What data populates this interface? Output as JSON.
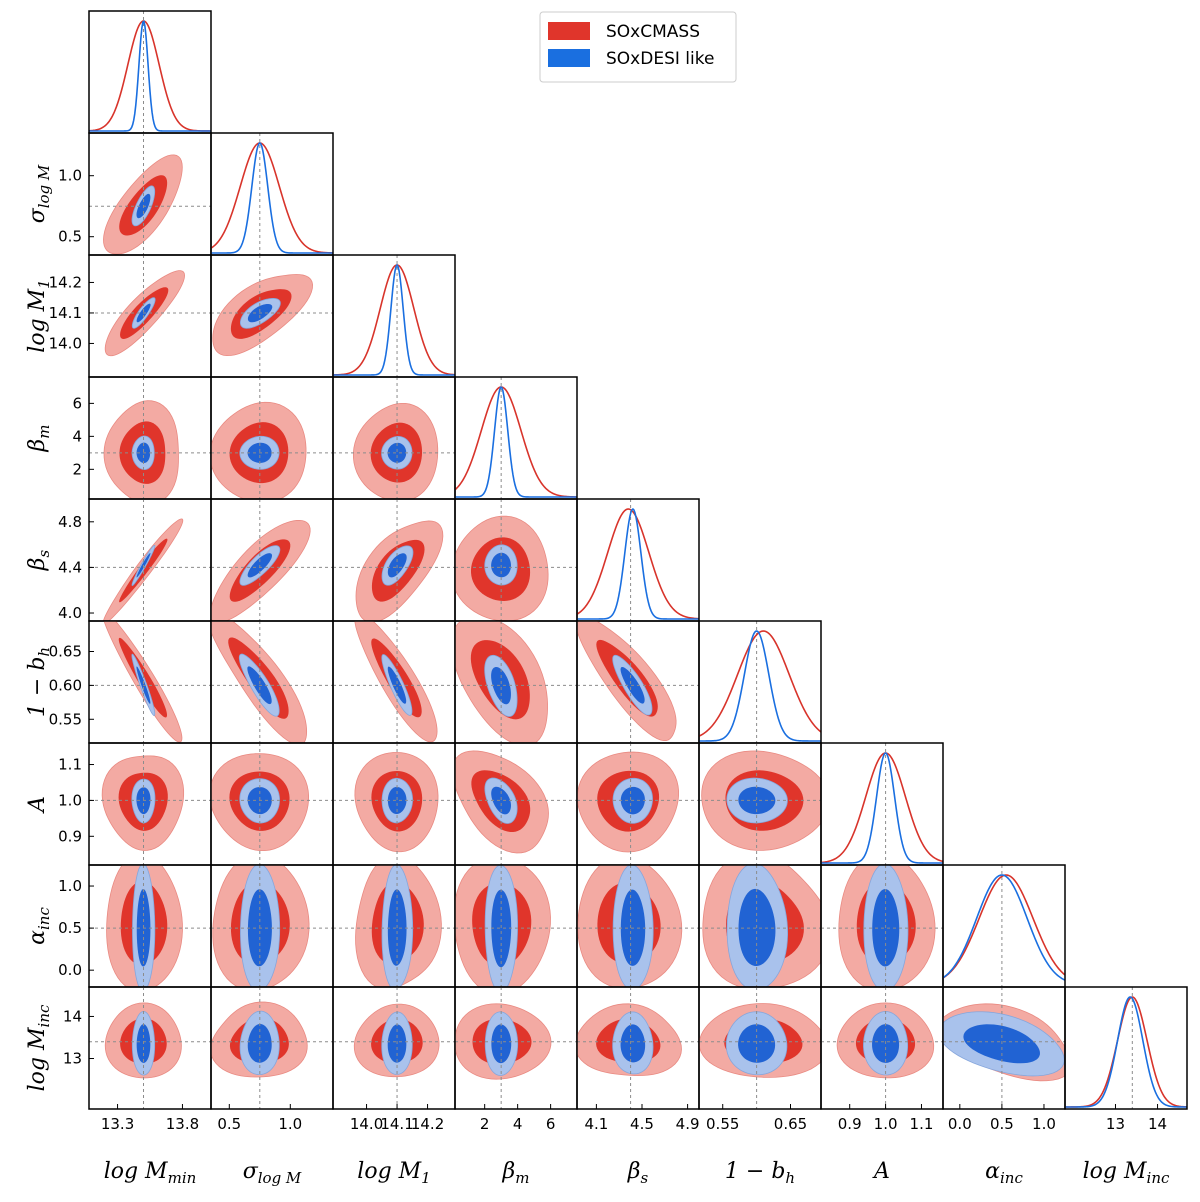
{
  "chart_data": {
    "type": "triangle",
    "title": "",
    "legend": {
      "placement": "top-right",
      "entries": [
        {
          "name": "SOxCMASS",
          "color": "#e0352b"
        },
        {
          "name": "SOxDESI like",
          "color": "#1a6fe0"
        }
      ]
    },
    "colors": {
      "cmass_outer": "#f3aaa3",
      "cmass_inner": "#e0352b",
      "desi_outer": "#a9c2ec",
      "desi_inner": "#2163d3",
      "cmass_line": "#d8342b",
      "desi_line": "#1a6fe0",
      "truth_line": "#8c8c8c"
    },
    "parameters": [
      {
        "name": "logMmin",
        "label": "log M_min",
        "fiducial": 13.5,
        "range": [
          13.08,
          14.02
        ],
        "ticks": [
          13.3,
          13.8
        ],
        "tick_labels": [
          "13.3",
          "13.8"
        ]
      },
      {
        "name": "sigma_logM",
        "label": "σ_log M",
        "fiducial": 0.75,
        "range": [
          0.35,
          1.35
        ],
        "ticks": [
          0.5,
          1.0
        ],
        "tick_labels": [
          "0.5",
          "1.0"
        ]
      },
      {
        "name": "logM1",
        "label": "log M_1",
        "fiducial": 14.1,
        "range": [
          13.89,
          14.29
        ],
        "ticks": [
          14.0,
          14.1,
          14.2
        ],
        "tick_labels": [
          "14.0",
          "14.1",
          "14.2"
        ]
      },
      {
        "name": "beta_m",
        "label": "β_m",
        "fiducial": 3.0,
        "range": [
          0.2,
          7.6
        ],
        "ticks": [
          2,
          4,
          6
        ],
        "tick_labels": [
          "2",
          "4",
          "6"
        ]
      },
      {
        "name": "beta_s",
        "label": "β_s",
        "fiducial": 4.4,
        "range": [
          3.93,
          5.0
        ],
        "ticks": [
          4.0,
          4.4,
          4.8
        ],
        "tick_labels": [
          "4.0",
          "4.4",
          "4.8"
        ],
        "xticks": [
          4.1,
          4.5,
          4.9
        ],
        "xtick_labels": [
          "4.1",
          "4.5",
          "4.9"
        ]
      },
      {
        "name": "one_minus_bh",
        "label": "1 − b_h",
        "fiducial": 0.6,
        "range": [
          0.515,
          0.695
        ],
        "ticks": [
          0.55,
          0.6,
          0.65
        ],
        "tick_labels": [
          "0.55",
          "0.60",
          "0.65"
        ],
        "xticks": [
          0.55,
          0.65
        ],
        "xtick_labels": [
          "0.55",
          "0.65"
        ]
      },
      {
        "name": "A",
        "label": "A",
        "fiducial": 1.0,
        "range": [
          0.82,
          1.16
        ],
        "ticks": [
          0.9,
          1.0,
          1.1
        ],
        "tick_labels": [
          "0.9",
          "1.0",
          "1.1"
        ]
      },
      {
        "name": "alpha_inc",
        "label": "α_inc",
        "fiducial": 0.5,
        "range": [
          -0.2,
          1.25
        ],
        "ticks": [
          0.0,
          0.5,
          1.0
        ],
        "tick_labels": [
          "0.0",
          "0.5",
          "1.0"
        ]
      },
      {
        "name": "logMinc",
        "label": "log M_inc",
        "fiducial": 13.4,
        "range": [
          11.8,
          14.7
        ],
        "ticks": [
          13,
          14
        ],
        "tick_labels": [
          "13",
          "14"
        ]
      }
    ],
    "cmass": {
      "name": "SOxCMASS",
      "mean": [
        13.5,
        0.75,
        14.1,
        3.0,
        4.38,
        0.61,
        1.0,
        0.55,
        13.4
      ],
      "sigma": [
        0.12,
        0.16,
        0.055,
        1.2,
        0.18,
        0.038,
        0.055,
        0.32,
        0.35
      ],
      "corr": [
        [
          1,
          0.7
        ],
        [
          2,
          0.85
        ],
        [
          4,
          0.97
        ],
        [
          5,
          -0.95
        ],
        [
          12,
          0.65
        ],
        [
          14,
          0.8
        ],
        [
          15,
          -0.85
        ],
        [
          24,
          0.6
        ],
        [
          25,
          -0.88
        ],
        [
          35,
          -0.5
        ],
        [
          36,
          -0.45
        ],
        [
          45,
          -0.85
        ],
        [
          78,
          -0.4
        ]
      ]
    },
    "desi": {
      "name": "SOxDESI like",
      "mean": [
        13.5,
        0.75,
        14.1,
        3.0,
        4.42,
        0.6,
        1.0,
        0.5,
        13.35
      ],
      "sigma": [
        0.035,
        0.065,
        0.02,
        0.4,
        0.07,
        0.018,
        0.025,
        0.3,
        0.3
      ],
      "corr": [
        [
          1,
          0.7
        ],
        [
          2,
          0.85
        ],
        [
          4,
          0.97
        ],
        [
          5,
          -0.95
        ],
        [
          12,
          0.65
        ],
        [
          14,
          0.8
        ],
        [
          15,
          -0.85
        ],
        [
          24,
          0.6
        ],
        [
          25,
          -0.88
        ],
        [
          35,
          -0.5
        ],
        [
          36,
          -0.45
        ],
        [
          45,
          -0.85
        ],
        [
          78,
          -0.4
        ]
      ]
    }
  }
}
